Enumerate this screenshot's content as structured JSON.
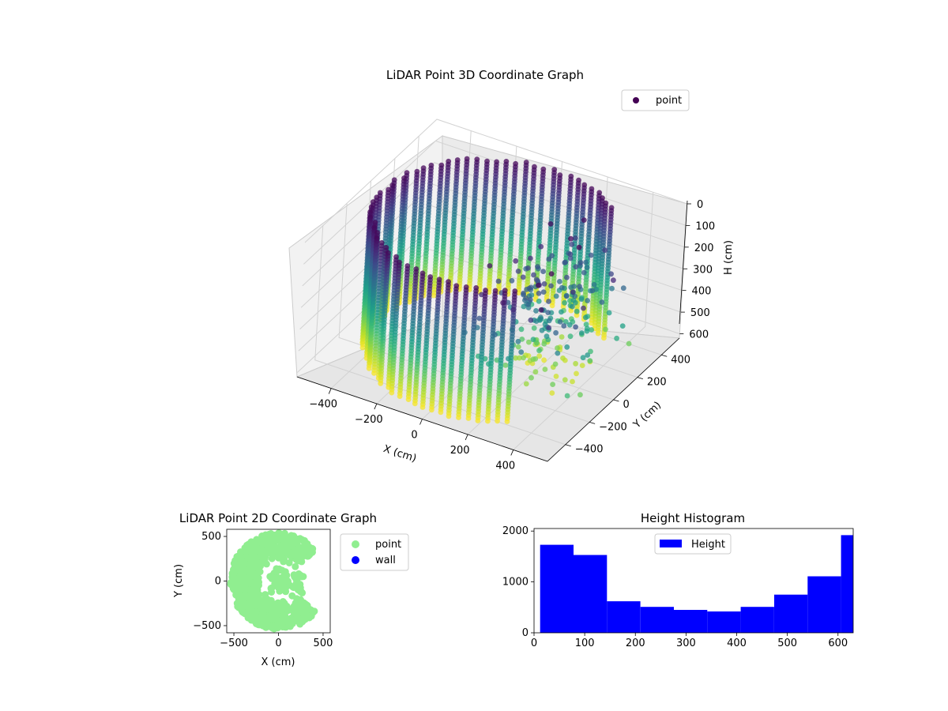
{
  "chart_data": [
    {
      "type": "scatter3d",
      "title": "LiDAR Point 3D Coordinate Graph",
      "xlabel": "X (cm)",
      "ylabel": "Y (cm)",
      "zlabel": "H (cm)",
      "xticks": [
        -400,
        -200,
        0,
        200,
        400
      ],
      "yticks": [
        -400,
        -200,
        0,
        200,
        400
      ],
      "zticks": [
        0,
        100,
        200,
        300,
        400,
        500,
        600
      ],
      "xlim": [
        -550,
        550
      ],
      "ylim": [
        -550,
        550
      ],
      "zlim": [
        0,
        620
      ],
      "z_inverted": true,
      "colormap": "viridis",
      "legend": [
        {
          "label": "point",
          "color": "#440154"
        }
      ],
      "legend_placement": "top-right",
      "grid": true
    },
    {
      "type": "scatter",
      "title": "LiDAR Point 2D Coordinate Graph",
      "xlabel": "X (cm)",
      "ylabel": "Y (cm)",
      "xticks": [
        -500,
        0,
        500
      ],
      "yticks": [
        -500,
        0,
        500
      ],
      "xlim": [
        -580,
        580
      ],
      "ylim": [
        -580,
        580
      ],
      "series": [
        {
          "name": "point",
          "color": "#90ee90"
        },
        {
          "name": "wall",
          "color": "#0000ff"
        }
      ],
      "legend_placement": "outside-right"
    },
    {
      "type": "bar",
      "title": "Height Histogram",
      "bins": [
        {
          "x0": 12,
          "x1": 78,
          "count": 1730
        },
        {
          "x0": 78,
          "x1": 144,
          "count": 1530
        },
        {
          "x0": 144,
          "x1": 210,
          "count": 620
        },
        {
          "x0": 210,
          "x1": 276,
          "count": 510
        },
        {
          "x0": 276,
          "x1": 342,
          "count": 450
        },
        {
          "x0": 342,
          "x1": 408,
          "count": 420
        },
        {
          "x0": 408,
          "x1": 474,
          "count": 510
        },
        {
          "x0": 474,
          "x1": 540,
          "count": 750
        },
        {
          "x0": 540,
          "x1": 606,
          "count": 1110
        },
        {
          "x0": 606,
          "x1": 630,
          "count": 1920
        }
      ],
      "xticks": [
        0,
        100,
        200,
        300,
        400,
        500,
        600
      ],
      "yticks": [
        0,
        1000,
        2000
      ],
      "xlim": [
        0,
        630
      ],
      "ylim": [
        0,
        2050
      ],
      "color": "#0000ff",
      "legend": [
        {
          "label": "Height",
          "color": "#0000ff"
        }
      ],
      "legend_placement": "top-center"
    }
  ]
}
